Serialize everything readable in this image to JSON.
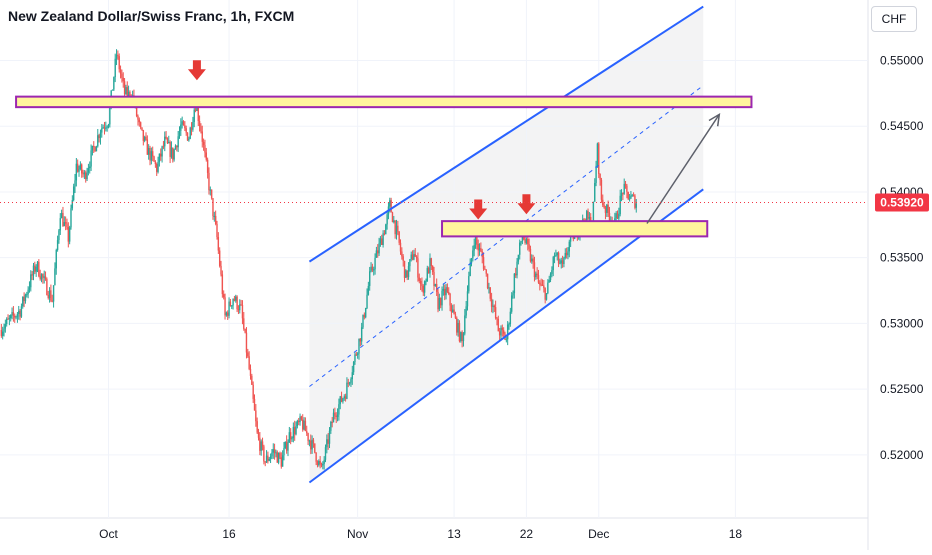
{
  "header": {
    "title": "New Zealand Dollar/Swiss Franc, 1h, FXCM",
    "currency_button": "CHF"
  },
  "colors": {
    "up": "#26a69a",
    "down": "#ef5350",
    "channel": "#2962ff",
    "zone_fill": "#fff59d",
    "zone_border": "#9c27b0",
    "arrow_marker": "#e53935",
    "price_tag": "#f23645",
    "projection": "#5d606b"
  },
  "chart_data": {
    "type": "candlestick",
    "symbol": "NZDCHF",
    "timeframe": "1h",
    "y_ticks": [
      0.52,
      0.525,
      0.53,
      0.535,
      0.54,
      0.545,
      0.55
    ],
    "y_tick_labels": [
      "0.52000",
      "0.52500",
      "0.53000",
      "0.53500",
      "0.54000",
      "0.54500",
      "0.55000"
    ],
    "ylim": [
      0.5152,
      0.5546
    ],
    "x_ticks": [
      {
        "day": 0,
        "label": "Oct"
      },
      {
        "day": 15,
        "label": "16"
      },
      {
        "day": 31,
        "label": "Nov"
      },
      {
        "day": 43,
        "label": "13"
      },
      {
        "day": 52,
        "label": "22"
      },
      {
        "day": 61,
        "label": "Dec"
      },
      {
        "day": 78,
        "label": "18"
      }
    ],
    "xlim": [
      -13.5,
      94.5
    ],
    "last_price": 0.5392,
    "last_price_label": "0.53920",
    "price_path": [
      [
        -13.5,
        0.5295
      ],
      [
        -11,
        0.531
      ],
      [
        -9,
        0.5345
      ],
      [
        -7,
        0.5318
      ],
      [
        -6,
        0.5385
      ],
      [
        -5,
        0.5365
      ],
      [
        -4,
        0.542
      ],
      [
        -3,
        0.5412
      ],
      [
        -1,
        0.5448
      ],
      [
        0,
        0.5455
      ],
      [
        1,
        0.5505
      ],
      [
        2,
        0.5475
      ],
      [
        3,
        0.5472
      ],
      [
        4,
        0.5445
      ],
      [
        5,
        0.543
      ],
      [
        6,
        0.5418
      ],
      [
        7,
        0.5438
      ],
      [
        8,
        0.5428
      ],
      [
        9,
        0.545
      ],
      [
        10,
        0.5442
      ],
      [
        10.8,
        0.5468
      ],
      [
        11.5,
        0.5448
      ],
      [
        12.5,
        0.5405
      ],
      [
        13.5,
        0.5365
      ],
      [
        14.5,
        0.5305
      ],
      [
        15.5,
        0.532
      ],
      [
        16.5,
        0.531
      ],
      [
        17.5,
        0.5265
      ],
      [
        18.5,
        0.5215
      ],
      [
        19.5,
        0.5195
      ],
      [
        20.5,
        0.5203
      ],
      [
        21.5,
        0.5195
      ],
      [
        22.5,
        0.5215
      ],
      [
        24,
        0.5225
      ],
      [
        25.5,
        0.5205
      ],
      [
        26.5,
        0.5188
      ],
      [
        28,
        0.523
      ],
      [
        29.5,
        0.5248
      ],
      [
        30.5,
        0.527
      ],
      [
        31.5,
        0.5295
      ],
      [
        32.5,
        0.5335
      ],
      [
        33.5,
        0.5355
      ],
      [
        34.5,
        0.5375
      ],
      [
        35,
        0.539
      ],
      [
        36,
        0.5365
      ],
      [
        37,
        0.5335
      ],
      [
        38,
        0.5355
      ],
      [
        39,
        0.5325
      ],
      [
        40,
        0.5345
      ],
      [
        41,
        0.5315
      ],
      [
        42,
        0.5325
      ],
      [
        43,
        0.5305
      ],
      [
        44,
        0.5285
      ],
      [
        44.5,
        0.5318
      ],
      [
        45.5,
        0.5365
      ],
      [
        46.5,
        0.535
      ],
      [
        47.5,
        0.5322
      ],
      [
        48.5,
        0.5295
      ],
      [
        49.5,
        0.5288
      ],
      [
        50.5,
        0.5335
      ],
      [
        51.5,
        0.5368
      ],
      [
        52.5,
        0.535
      ],
      [
        53.5,
        0.533
      ],
      [
        54.5,
        0.5322
      ],
      [
        55.5,
        0.5352
      ],
      [
        56.5,
        0.5342
      ],
      [
        57.5,
        0.5365
      ],
      [
        58.5,
        0.5372
      ],
      [
        59.5,
        0.538
      ],
      [
        60.2,
        0.5375
      ],
      [
        60.8,
        0.5435
      ],
      [
        61.3,
        0.5395
      ],
      [
        62,
        0.5385
      ],
      [
        63,
        0.5375
      ],
      [
        64,
        0.5402
      ],
      [
        65,
        0.5395
      ],
      [
        65.8,
        0.5392
      ]
    ],
    "channel": {
      "upper": [
        [
          25,
          0.5347
        ],
        [
          74,
          0.5541
        ]
      ],
      "lower": [
        [
          25,
          0.5179
        ],
        [
          74,
          0.5402
        ]
      ],
      "mid": [
        [
          25,
          0.5252
        ],
        [
          74,
          0.5481
        ]
      ]
    },
    "zones": [
      {
        "x": [
          -11.5,
          80
        ],
        "y": [
          0.54645,
          0.54725
        ]
      },
      {
        "x": [
          41.5,
          74.5
        ],
        "y": [
          0.53662,
          0.53778
        ]
      }
    ],
    "markers": [
      {
        "day": 11,
        "price": 0.5485
      },
      {
        "day": 46,
        "price": 0.5379
      },
      {
        "day": 52,
        "price": 0.5383
      }
    ],
    "projection_arrow": [
      [
        67,
        0.5376
      ],
      [
        76,
        0.5459
      ]
    ]
  }
}
